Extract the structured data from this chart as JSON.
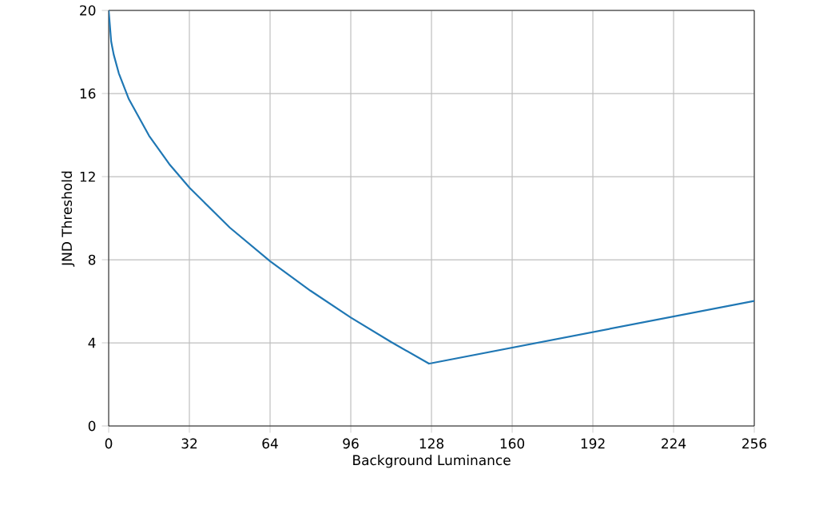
{
  "chart_data": {
    "type": "line",
    "xlabel": "Background Luminance",
    "ylabel": "JND Threshold",
    "x": [
      0,
      1,
      2,
      4,
      8,
      16,
      24,
      32,
      48,
      64,
      80,
      96,
      112,
      127,
      128,
      160,
      192,
      224,
      256
    ],
    "series": [
      {
        "color": "#1f77b4",
        "values": [
          20,
          18.49,
          17.87,
          16.98,
          15.73,
          13.97,
          12.61,
          11.47,
          9.55,
          7.93,
          6.51,
          5.22,
          4.04,
          3,
          3.02,
          3.77,
          4.52,
          5.27,
          6.02
        ]
      }
    ],
    "xlim": [
      0,
      256
    ],
    "ylim": [
      0,
      20
    ],
    "xticks": [
      0,
      32,
      64,
      96,
      128,
      160,
      192,
      224,
      256
    ],
    "yticks": [
      0,
      4,
      8,
      12,
      16,
      20
    ],
    "grid": true
  }
}
